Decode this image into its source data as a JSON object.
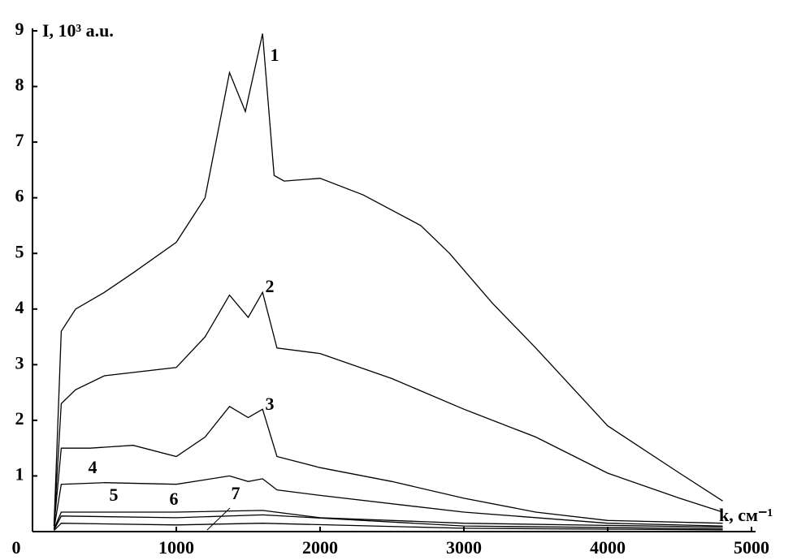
{
  "chart_data": {
    "type": "line",
    "y_label": "I, 10³ a.u.",
    "x_label": "k, см⁻¹",
    "xlim": [
      0,
      5000
    ],
    "xticks": [
      0,
      1000,
      2000,
      3000,
      4000,
      5000
    ],
    "ylim": [
      0,
      9
    ],
    "yticks": [
      1,
      2,
      3,
      4,
      5,
      6,
      7,
      8,
      9
    ],
    "grid": false,
    "series": [
      {
        "name": "1",
        "color": "#000000",
        "x": [
          150,
          200,
          300,
          500,
          700,
          1000,
          1200,
          1370,
          1480,
          1600,
          1680,
          1750,
          2000,
          2300,
          2700,
          2900,
          3200,
          3500,
          4000,
          4500,
          4800
        ],
        "values": [
          0.1,
          3.6,
          4.0,
          4.3,
          4.65,
          5.2,
          6.0,
          8.25,
          7.55,
          8.95,
          6.4,
          6.3,
          6.35,
          6.05,
          5.5,
          5.0,
          4.1,
          3.3,
          1.9,
          1.05,
          0.55
        ]
      },
      {
        "name": "2",
        "color": "#000000",
        "x": [
          150,
          200,
          300,
          500,
          1000,
          1200,
          1370,
          1500,
          1600,
          1700,
          2000,
          2500,
          3000,
          3500,
          4000,
          4500,
          4800
        ],
        "values": [
          0.1,
          2.3,
          2.55,
          2.8,
          2.95,
          3.5,
          4.25,
          3.85,
          4.3,
          3.3,
          3.2,
          2.75,
          2.2,
          1.7,
          1.05,
          0.6,
          0.35
        ]
      },
      {
        "name": "3",
        "color": "#000000",
        "x": [
          150,
          200,
          400,
          700,
          1000,
          1200,
          1370,
          1500,
          1600,
          1700,
          2000,
          2500,
          3000,
          3500,
          4000,
          4800
        ],
        "values": [
          0.1,
          1.5,
          1.5,
          1.55,
          1.35,
          1.7,
          2.25,
          2.05,
          2.2,
          1.35,
          1.15,
          0.9,
          0.6,
          0.35,
          0.2,
          0.15
        ]
      },
      {
        "name": "4",
        "color": "#000000",
        "x": [
          150,
          200,
          500,
          1000,
          1370,
          1500,
          1600,
          1700,
          2000,
          3000,
          4000,
          4800
        ],
        "values": [
          0.05,
          0.85,
          0.88,
          0.85,
          1.0,
          0.9,
          0.95,
          0.75,
          0.65,
          0.35,
          0.15,
          0.1
        ]
      },
      {
        "name": "5",
        "color": "#000000",
        "x": [
          150,
          200,
          1000,
          1600,
          2000,
          3000,
          4800
        ],
        "values": [
          0.05,
          0.35,
          0.35,
          0.38,
          0.25,
          0.15,
          0.08
        ]
      },
      {
        "name": "6",
        "color": "#000000",
        "x": [
          150,
          200,
          1000,
          1600,
          3000,
          4800
        ],
        "values": [
          0.03,
          0.28,
          0.25,
          0.3,
          0.1,
          0.05
        ]
      },
      {
        "name": "7",
        "color": "#000000",
        "x": [
          150,
          200,
          1000,
          1600,
          3000,
          4800
        ],
        "values": [
          0.02,
          0.15,
          0.12,
          0.15,
          0.06,
          0.03
        ]
      }
    ]
  }
}
